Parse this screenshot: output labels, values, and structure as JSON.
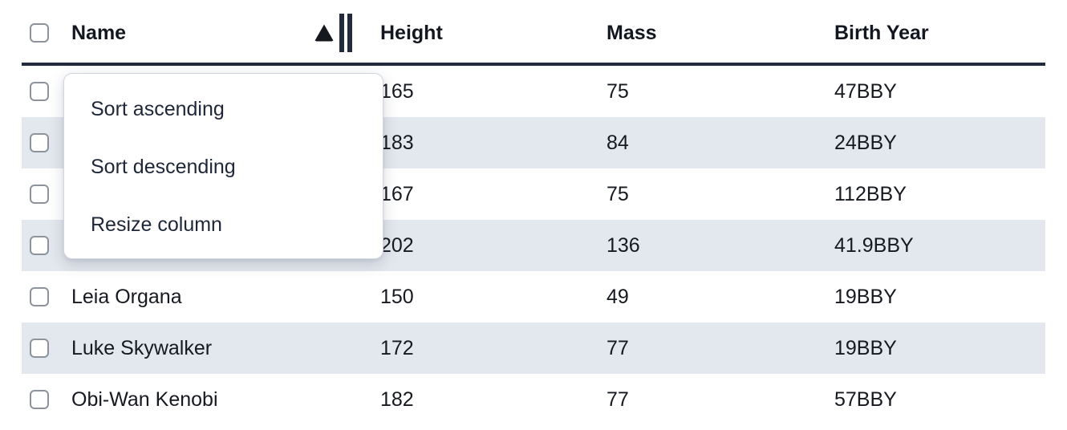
{
  "colors": {
    "header_border": "#212b3c",
    "stripe": "#e3e7ee",
    "cell_text": "#16191f",
    "menu_text": "#1d2738",
    "checkbox_border": "#8d939d",
    "menu_border": "#d0d6e0",
    "icon_dark": "#15181d"
  },
  "table": {
    "columns": [
      {
        "id": "name",
        "label": "Name",
        "sort": "ascending"
      },
      {
        "id": "height",
        "label": "Height",
        "sort": ""
      },
      {
        "id": "mass",
        "label": "Mass",
        "sort": ""
      },
      {
        "id": "birth_year",
        "label": "Birth Year",
        "sort": ""
      }
    ],
    "rows": [
      {
        "name": "",
        "height": "165",
        "mass": "75",
        "birth_year": "47BBY"
      },
      {
        "name": "",
        "height": "183",
        "mass": "84",
        "birth_year": "24BBY"
      },
      {
        "name": "",
        "height": "167",
        "mass": "75",
        "birth_year": "112BBY"
      },
      {
        "name": "",
        "height": "202",
        "mass": "136",
        "birth_year": "41.9BBY"
      },
      {
        "name": "Leia Organa",
        "height": "150",
        "mass": "49",
        "birth_year": "19BBY"
      },
      {
        "name": "Luke Skywalker",
        "height": "172",
        "mass": "77",
        "birth_year": "19BBY"
      },
      {
        "name": "Obi-Wan Kenobi",
        "height": "182",
        "mass": "77",
        "birth_year": "57BBY"
      }
    ],
    "striped_row_indexes": [
      1,
      3,
      5
    ]
  },
  "menu": {
    "items": [
      "Sort ascending",
      "Sort descending",
      "Resize column"
    ]
  },
  "icons": {
    "sort_ascending": "up-triangle",
    "column_resize": "double-vertical-bar",
    "checkbox": "empty-rounded-square"
  }
}
